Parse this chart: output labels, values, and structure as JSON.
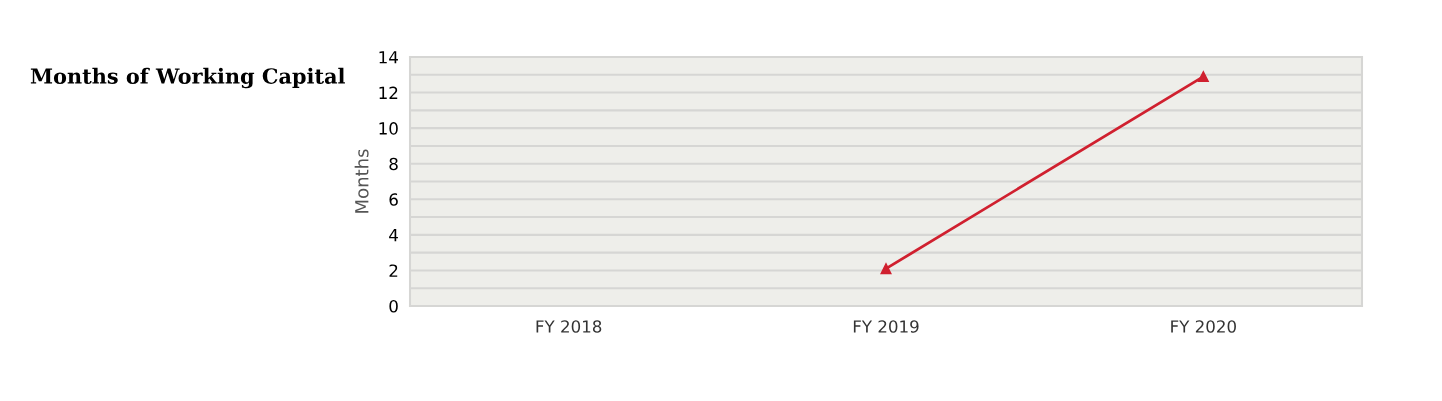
{
  "chart_data": {
    "type": "line",
    "title": "Months of Working Capital",
    "ylabel": "Months",
    "categories": [
      "FY 2018",
      "FY 2019",
      "FY 2020"
    ],
    "series": [
      {
        "color": "#d0202f",
        "values": [
          null,
          2.1,
          12.9
        ]
      }
    ],
    "ylim": [
      0,
      14
    ],
    "yticks": [
      0,
      {
        "value": 1,
        "label": null
      },
      2,
      {
        "value": 3,
        "label": null
      },
      4,
      {
        "value": 5,
        "label": null
      },
      6,
      {
        "value": 7,
        "label": null
      },
      8,
      {
        "value": 9,
        "label": null
      },
      10,
      {
        "value": 11,
        "label": null
      },
      12,
      {
        "value": 13,
        "label": null
      },
      14
    ],
    "grid": "y",
    "marker": "triangle",
    "line_style": "solid",
    "legend": false
  }
}
